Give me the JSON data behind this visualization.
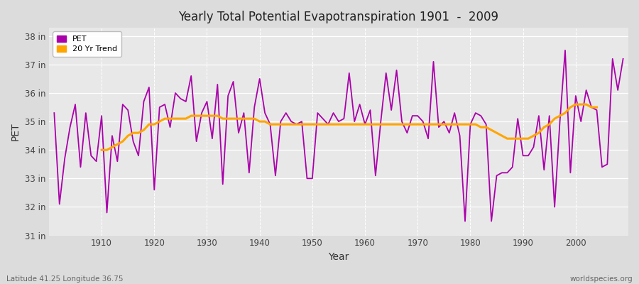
{
  "title": "Yearly Total Potential Evapotranspiration 1901  -  2009",
  "xlabel": "Year",
  "ylabel": "PET",
  "lat_lon_label": "Latitude 41.25 Longitude 36.75",
  "source_label": "worldspecies.org",
  "pet_color": "#AA00AA",
  "trend_color": "#FFA500",
  "bg_color": "#DCDCDC",
  "plot_bg_color": "#E8E8E8",
  "years": [
    1901,
    1902,
    1903,
    1904,
    1905,
    1906,
    1907,
    1908,
    1909,
    1910,
    1911,
    1912,
    1913,
    1914,
    1915,
    1916,
    1917,
    1918,
    1919,
    1920,
    1921,
    1922,
    1923,
    1924,
    1925,
    1926,
    1927,
    1928,
    1929,
    1930,
    1931,
    1932,
    1933,
    1934,
    1935,
    1936,
    1937,
    1938,
    1939,
    1940,
    1941,
    1942,
    1943,
    1944,
    1945,
    1946,
    1947,
    1948,
    1949,
    1950,
    1951,
    1952,
    1953,
    1954,
    1955,
    1956,
    1957,
    1958,
    1959,
    1960,
    1961,
    1962,
    1963,
    1964,
    1965,
    1966,
    1967,
    1968,
    1969,
    1970,
    1971,
    1972,
    1973,
    1974,
    1975,
    1976,
    1977,
    1978,
    1979,
    1980,
    1981,
    1982,
    1983,
    1984,
    1985,
    1986,
    1987,
    1988,
    1989,
    1990,
    1991,
    1992,
    1993,
    1994,
    1995,
    1996,
    1997,
    1998,
    1999,
    2000,
    2001,
    2002,
    2003,
    2004,
    2005,
    2006,
    2007,
    2008,
    2009
  ],
  "pet_values": [
    35.3,
    32.1,
    33.7,
    34.8,
    35.6,
    33.4,
    35.3,
    33.8,
    33.6,
    35.2,
    31.8,
    34.5,
    33.6,
    35.6,
    35.4,
    34.3,
    33.8,
    35.7,
    36.2,
    32.6,
    35.5,
    35.6,
    34.8,
    36.0,
    35.8,
    35.7,
    36.6,
    34.3,
    35.3,
    35.7,
    34.4,
    36.3,
    32.8,
    35.9,
    36.4,
    34.6,
    35.3,
    33.2,
    35.5,
    36.5,
    35.3,
    34.9,
    33.1,
    35.0,
    35.3,
    35.0,
    34.9,
    35.0,
    33.0,
    33.0,
    35.3,
    35.1,
    34.9,
    35.3,
    35.0,
    35.1,
    36.7,
    35.0,
    35.6,
    34.9,
    35.4,
    33.1,
    35.0,
    36.7,
    35.4,
    36.8,
    35.0,
    34.6,
    35.2,
    35.2,
    35.0,
    34.4,
    37.1,
    34.8,
    35.0,
    34.6,
    35.3,
    34.5,
    31.5,
    34.9,
    35.3,
    35.2,
    34.9,
    31.5,
    33.1,
    33.2,
    33.2,
    33.4,
    35.1,
    33.8,
    33.8,
    34.1,
    35.2,
    33.3,
    35.2,
    32.0,
    35.0,
    37.5,
    33.2,
    35.9,
    35.0,
    36.1,
    35.5,
    35.4,
    33.4,
    33.5,
    37.2,
    36.1,
    37.2
  ],
  "trend_values": [
    null,
    null,
    null,
    null,
    null,
    null,
    null,
    null,
    null,
    34.0,
    34.0,
    34.1,
    34.2,
    34.3,
    34.5,
    34.6,
    34.6,
    34.7,
    34.9,
    34.9,
    35.0,
    35.1,
    35.1,
    35.1,
    35.1,
    35.1,
    35.2,
    35.2,
    35.2,
    35.2,
    35.2,
    35.2,
    35.1,
    35.1,
    35.1,
    35.1,
    35.1,
    35.1,
    35.1,
    35.0,
    35.0,
    34.9,
    34.9,
    34.9,
    34.9,
    34.9,
    34.9,
    34.9,
    34.9,
    34.9,
    34.9,
    34.9,
    34.9,
    34.9,
    34.9,
    34.9,
    34.9,
    34.9,
    34.9,
    34.9,
    34.9,
    34.9,
    34.9,
    34.9,
    34.9,
    34.9,
    34.9,
    34.9,
    34.9,
    34.9,
    34.9,
    34.9,
    34.9,
    34.9,
    34.9,
    34.9,
    34.9,
    34.9,
    34.9,
    34.9,
    34.9,
    34.8,
    34.8,
    34.7,
    34.6,
    34.5,
    34.4,
    34.4,
    34.4,
    34.4,
    34.4,
    34.5,
    34.6,
    34.8,
    34.9,
    35.1,
    35.2,
    35.3,
    35.5,
    35.6,
    35.6,
    35.6,
    35.5,
    35.5
  ],
  "ylim": [
    31.0,
    38.3
  ],
  "yticks": [
    31,
    32,
    33,
    34,
    35,
    36,
    37,
    38
  ],
  "ytick_labels": [
    "31 in",
    "32 in",
    "33 in",
    "34 in",
    "35 in",
    "36 in",
    "37 in",
    "38 in"
  ],
  "xlim": [
    1900,
    2010
  ],
  "xticks": [
    1910,
    1920,
    1930,
    1940,
    1950,
    1960,
    1970,
    1980,
    1990,
    2000
  ]
}
